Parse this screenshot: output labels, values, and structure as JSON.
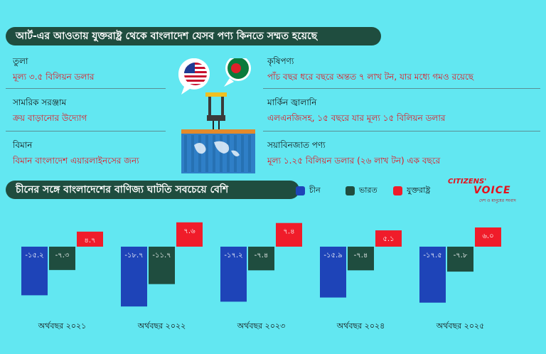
{
  "header": {
    "title": "আর্ট-এর আওতায় যুক্তরাষ্ট্র থেকে বাংলাদেশ যেসব পণ্য কিনতে সম্মত হয়েছে"
  },
  "items_left": [
    {
      "heading": "তুলা",
      "value": "মূল্য ৩.৫ বিলিয়ন ডলার"
    },
    {
      "heading": "সামরিক সরঞ্জাম",
      "value": "ক্রয় বাড়ানোর উদ্যোগ"
    },
    {
      "heading": "বিমান",
      "value": "বিমান বাংলাদেশ এয়ারলাইনসের জন্য"
    }
  ],
  "items_right": [
    {
      "heading": "কৃষিপণ্য",
      "value": "পাঁচ বছর ধরে বছরে অন্তত ৭ লাখ টন, যার মধ্যে গমও রয়েছে"
    },
    {
      "heading": "মার্কিন জ্বালানি",
      "value": "এলএনজিসহ, ১৫ বছরে যার মূল্য ১৫ বিলিয়ন ডলার"
    },
    {
      "heading": "সয়াবিনজাত পণ্য",
      "value": "মূল্য ১.২৫ বিলিয়ন ডলার (২৬ লাখ টন) এক বছরে"
    }
  ],
  "brand": {
    "line1": "CITIZENS'",
    "line2": "VOICE",
    "tagline": "দেশ ও মানুষের সংবাদ"
  },
  "colors": {
    "china": "#1e44b8",
    "india": "#1f4d3f",
    "usa": "#f01c2a",
    "accent_text": "#e5101c",
    "banner": "#1f4d3f",
    "background": "#62e7f1"
  },
  "illustration": {
    "icons": [
      "usa-flag-bubble-icon",
      "bangladesh-flag-bubble-icon",
      "crane-container-icon"
    ]
  },
  "chart_data": {
    "type": "bar",
    "title": "চীনের সঙ্গে বাংলাদেশের বাণিজ্য ঘাটতি সবচেয়ে বেশি",
    "legend_position": "top-right",
    "categories": [
      "অর্থবছর ২০২১",
      "অর্থবছর ২০২২",
      "অর্থবছর ২০২৩",
      "অর্থবছর ২০২৪",
      "অর্থবছর ২০২৫"
    ],
    "series": [
      {
        "name": "চীন",
        "values": [
          -15.2,
          -18.7,
          -17.2,
          -15.9,
          -17.5
        ],
        "labels": [
          "-১৫.২",
          "-১৮.৭",
          "-১৭.২",
          "-১৫.৯",
          "-১৭.৫"
        ]
      },
      {
        "name": "ভারত",
        "values": [
          -7.3,
          -11.7,
          -7.4,
          -7.4,
          -7.8
        ],
        "labels": [
          "-৭.৩",
          "-১১.৭",
          "-৭.৪",
          "-৭.৪",
          "-৭.৮"
        ]
      },
      {
        "name": "যুক্তরাষ্ট্র",
        "values": [
          4.7,
          7.6,
          7.4,
          5.1,
          6.0
        ],
        "labels": [
          "৪.৭",
          "৭.৬",
          "৭.৪",
          "৫.১",
          "৬.০"
        ]
      }
    ]
  }
}
